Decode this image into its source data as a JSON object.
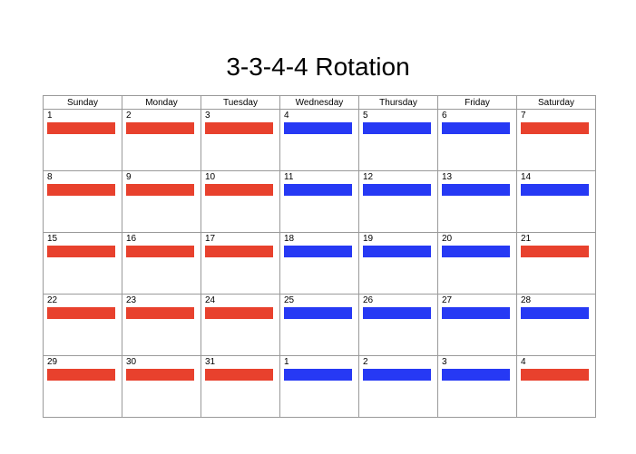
{
  "title": "3-3-4-4 Rotation",
  "colors": {
    "red": "#e8412d",
    "blue": "#2639f4"
  },
  "weekdays": [
    "Sunday",
    "Monday",
    "Tuesday",
    "Wednesday",
    "Thursday",
    "Friday",
    "Saturday"
  ],
  "weeks": [
    {
      "days": [
        {
          "num": "1",
          "shift": "red"
        },
        {
          "num": "2",
          "shift": "red"
        },
        {
          "num": "3",
          "shift": "red"
        },
        {
          "num": "4",
          "shift": "blue"
        },
        {
          "num": "5",
          "shift": "blue"
        },
        {
          "num": "6",
          "shift": "blue"
        },
        {
          "num": "7",
          "shift": "red"
        }
      ]
    },
    {
      "days": [
        {
          "num": "8",
          "shift": "red"
        },
        {
          "num": "9",
          "shift": "red"
        },
        {
          "num": "10",
          "shift": "red"
        },
        {
          "num": "11",
          "shift": "blue"
        },
        {
          "num": "12",
          "shift": "blue"
        },
        {
          "num": "13",
          "shift": "blue"
        },
        {
          "num": "14",
          "shift": "blue"
        }
      ]
    },
    {
      "days": [
        {
          "num": "15",
          "shift": "red"
        },
        {
          "num": "16",
          "shift": "red"
        },
        {
          "num": "17",
          "shift": "red"
        },
        {
          "num": "18",
          "shift": "blue"
        },
        {
          "num": "19",
          "shift": "blue"
        },
        {
          "num": "20",
          "shift": "blue"
        },
        {
          "num": "21",
          "shift": "red"
        }
      ]
    },
    {
      "days": [
        {
          "num": "22",
          "shift": "red"
        },
        {
          "num": "23",
          "shift": "red"
        },
        {
          "num": "24",
          "shift": "red"
        },
        {
          "num": "25",
          "shift": "blue"
        },
        {
          "num": "26",
          "shift": "blue"
        },
        {
          "num": "27",
          "shift": "blue"
        },
        {
          "num": "28",
          "shift": "blue"
        }
      ]
    },
    {
      "days": [
        {
          "num": "29",
          "shift": "red"
        },
        {
          "num": "30",
          "shift": "red"
        },
        {
          "num": "31",
          "shift": "red"
        },
        {
          "num": "1",
          "shift": "blue"
        },
        {
          "num": "2",
          "shift": "blue"
        },
        {
          "num": "3",
          "shift": "blue"
        },
        {
          "num": "4",
          "shift": "red"
        }
      ]
    }
  ]
}
